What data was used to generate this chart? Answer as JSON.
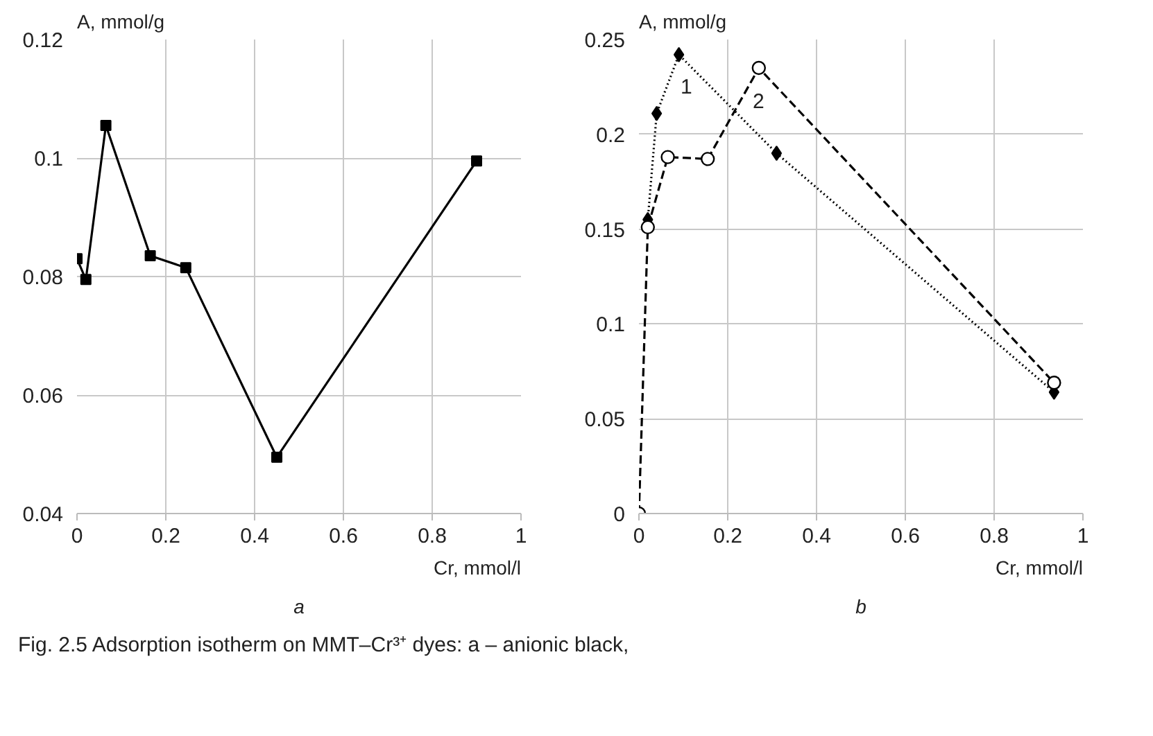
{
  "chart_data": [
    {
      "type": "line",
      "ylabel": "A, mmol/g",
      "xlabel": "Cr, mmol/l",
      "xlim": [
        0,
        1
      ],
      "xticks": [
        0,
        0.2,
        0.4,
        0.6,
        0.8,
        1
      ],
      "ylim": [
        0.04,
        0.12
      ],
      "yticks": [
        0.04,
        0.06,
        0.08,
        0.1,
        0.12
      ],
      "grid": true,
      "marker": "square",
      "line_style": "solid",
      "series": [
        {
          "color": "#000000",
          "x": [
            0,
            0.02,
            0.065,
            0.165,
            0.245,
            0.45,
            0.9
          ],
          "values": [
            0.083,
            0.0795,
            0.1055,
            0.0835,
            0.0815,
            0.0495,
            0.0995
          ]
        }
      ],
      "annotations": [
        "a",
        "Fig. 2.5 Adsorption isotherm on MMT–Cr³⁺ dyes: a – anionic black,"
      ]
    },
    {
      "type": "line",
      "ylabel": "A, mmol/g",
      "xlabel": "Cr, mmol/l",
      "xlim": [
        0,
        1
      ],
      "xticks": [
        0,
        0.2,
        0.4,
        0.6,
        0.8,
        1
      ],
      "ylim": [
        0,
        0.25
      ],
      "yticks": [
        0,
        0.05,
        0.1,
        0.15,
        0.2,
        0.25
      ],
      "grid": true,
      "series": [
        {
          "name": "1",
          "color": "#000000",
          "marker": "diamond",
          "line_style": "dotted",
          "x": [
            0.02,
            0.04,
            0.09,
            0.31,
            0.935
          ],
          "values": [
            0.155,
            0.211,
            0.242,
            0.19,
            0.064
          ]
        },
        {
          "name": "2",
          "color": "#000000",
          "marker": "circle",
          "line_style": "dashed",
          "x": [
            0,
            0.02,
            0.065,
            0.155,
            0.27,
            0.935
          ],
          "values": [
            0,
            0.151,
            0.188,
            0.187,
            0.235,
            0.069
          ]
        }
      ],
      "annotations": [
        "b"
      ]
    }
  ]
}
